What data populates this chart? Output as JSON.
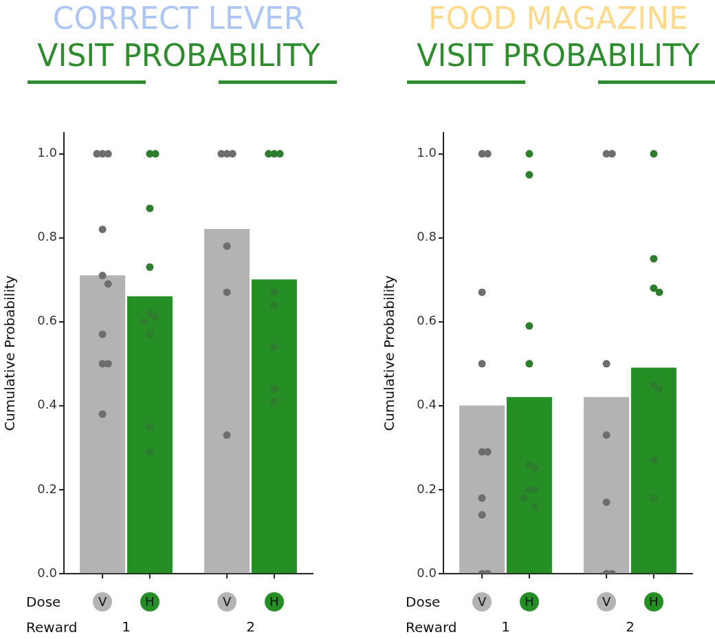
{
  "chart_data": [
    {
      "type": "bar",
      "title": "CORRECT LEVER",
      "subtitle": "VISIT PROBABILITY",
      "ylabel": "Cumulative Probability",
      "xlabel": "Reward",
      "categories": [
        "1",
        "2"
      ],
      "ylim": [
        0,
        1.05
      ],
      "yticks": [
        {
          "value": 0,
          "label": "0.0"
        },
        {
          "value": 0.2,
          "label": "0.2"
        },
        {
          "value": 0.4,
          "label": "0.4"
        },
        {
          "value": 0.6,
          "label": "0.6"
        },
        {
          "value": 0.8,
          "label": "0.8"
        },
        {
          "value": 1,
          "label": "1.0"
        }
      ],
      "marker": "circle",
      "annotations": [
        "Dose"
      ],
      "series": [
        {
          "type": "bar",
          "name": "V",
          "color": "#b3b3b3",
          "values": [
            0.71,
            0.82
          ]
        },
        {
          "type": "bar",
          "name": "H",
          "color": "#258f25",
          "values": [
            0.66,
            0.7
          ]
        },
        {
          "type": "scatter",
          "color": "#6e6e6e",
          "x": [
            "1",
            "1",
            "1",
            "1",
            "1",
            "1",
            "1",
            "1",
            "1",
            "1",
            "2",
            "2",
            "2",
            "2",
            "2",
            "2"
          ],
          "values": [
            1,
            1,
            1,
            0.82,
            0.71,
            0.69,
            0.57,
            0.5,
            0.5,
            0.38,
            1,
            1,
            1,
            0.78,
            0.67,
            0.33
          ]
        },
        {
          "type": "scatter",
          "color": "#2e7d2e",
          "x": [
            "1",
            "1",
            "1",
            "1",
            "1",
            "1",
            "1",
            "1",
            "1",
            "1",
            "2",
            "2",
            "2",
            "2",
            "2",
            "2",
            "2",
            "2"
          ],
          "values": [
            1,
            1,
            0.87,
            0.73,
            0.62,
            0.61,
            0.6,
            0.57,
            0.35,
            0.29,
            1,
            1,
            1,
            0.67,
            0.64,
            0.54,
            0.44,
            0.41
          ]
        }
      ]
    },
    {
      "type": "bar",
      "title": "FOOD MAGAZINE",
      "subtitle": "VISIT PROBABILITY",
      "ylabel": "Cumulative Probability",
      "xlabel": "Reward",
      "categories": [
        "1",
        "2"
      ],
      "ylim": [
        0,
        1.05
      ],
      "yticks": [
        {
          "value": 0,
          "label": "0.0"
        },
        {
          "value": 0.2,
          "label": "0.2"
        },
        {
          "value": 0.4,
          "label": "0.4"
        },
        {
          "value": 0.6,
          "label": "0.6"
        },
        {
          "value": 0.8,
          "label": "0.8"
        },
        {
          "value": 1,
          "label": "1.0"
        }
      ],
      "marker": "circle",
      "annotations": [
        "Dose"
      ],
      "series": [
        {
          "type": "bar",
          "name": "V",
          "color": "#b3b3b3",
          "values": [
            0.4,
            0.42
          ]
        },
        {
          "type": "bar",
          "name": "H",
          "color": "#258f25",
          "values": [
            0.42,
            0.49
          ]
        },
        {
          "type": "scatter",
          "color": "#6e6e6e",
          "x": [
            "1",
            "1",
            "1",
            "1",
            "1",
            "1",
            "1",
            "1",
            "1",
            "1",
            "2",
            "2",
            "2",
            "2",
            "2",
            "2",
            "2"
          ],
          "values": [
            1,
            1,
            0.67,
            0.5,
            0.29,
            0.29,
            0.18,
            0.14,
            0,
            0,
            1,
            1,
            0.5,
            0.33,
            0.17,
            0,
            0
          ]
        },
        {
          "type": "scatter",
          "color": "#2e7d2e",
          "x": [
            "1",
            "1",
            "1",
            "1",
            "1",
            "1",
            "1",
            "1",
            "1",
            "1",
            "2",
            "2",
            "2",
            "2",
            "2",
            "2",
            "2",
            "2",
            "2"
          ],
          "values": [
            1,
            0.95,
            0.59,
            0.5,
            0.26,
            0.25,
            0.2,
            0.2,
            0.18,
            0.16,
            1,
            0.75,
            0.68,
            0.67,
            0.45,
            0.44,
            0.27,
            0.18,
            0
          ]
        }
      ]
    }
  ]
}
